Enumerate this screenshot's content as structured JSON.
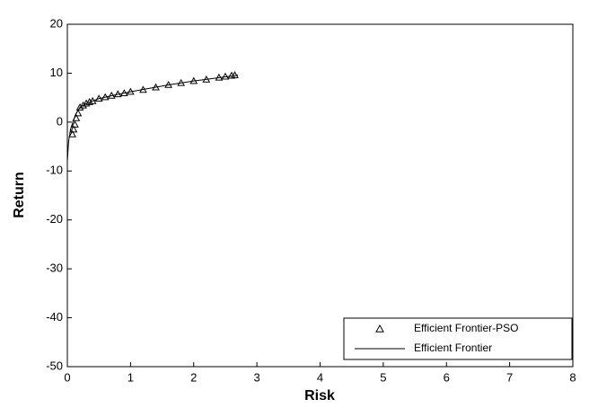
{
  "chart_data": {
    "type": "line",
    "xlabel": "Risk",
    "ylabel": "Return",
    "xlim": [
      0,
      8
    ],
    "xticks": [
      0,
      1,
      2,
      3,
      4,
      5,
      6,
      7,
      8
    ],
    "ylim": [
      -50,
      20
    ],
    "yticks": [
      -50,
      -40,
      -30,
      -20,
      -10,
      0,
      10,
      20
    ],
    "legend": "lower right",
    "series": [
      {
        "name": "Efficient Frontier-PSO",
        "color": "#000000",
        "marker": "triangle",
        "x": [
          0.08,
          0.1,
          0.12,
          0.14,
          0.17,
          0.2,
          0.25,
          0.3,
          0.35,
          0.4,
          0.5,
          0.6,
          0.7,
          0.8,
          0.9,
          1.0,
          1.2,
          1.4,
          1.6,
          1.8,
          2.0,
          2.2,
          2.4,
          2.5,
          2.6,
          2.65
        ],
        "values": [
          -2.5,
          -1.5,
          -0.5,
          0.8,
          1.8,
          3,
          3.4,
          3.8,
          4.1,
          4.3,
          4.8,
          5.1,
          5.4,
          5.7,
          5.9,
          6.2,
          6.6,
          7.1,
          7.6,
          8,
          8.4,
          8.7,
          9.1,
          9.3,
          9.5,
          9.6
        ]
      },
      {
        "name": "Efficient Frontier",
        "color": "#000000",
        "x": [
          0,
          0.02,
          0.05,
          0.1,
          0.15,
          0.2,
          0.3,
          0.4,
          0.5,
          0.7,
          1.0,
          1.3,
          1.6,
          2.0,
          2.3,
          2.7
        ],
        "values": [
          -8,
          -4,
          -1.5,
          0.5,
          2,
          3,
          3.8,
          4.3,
          4.8,
          5.4,
          6.2,
          6.9,
          7.6,
          8.4,
          8.9,
          9.6
        ]
      }
    ]
  }
}
